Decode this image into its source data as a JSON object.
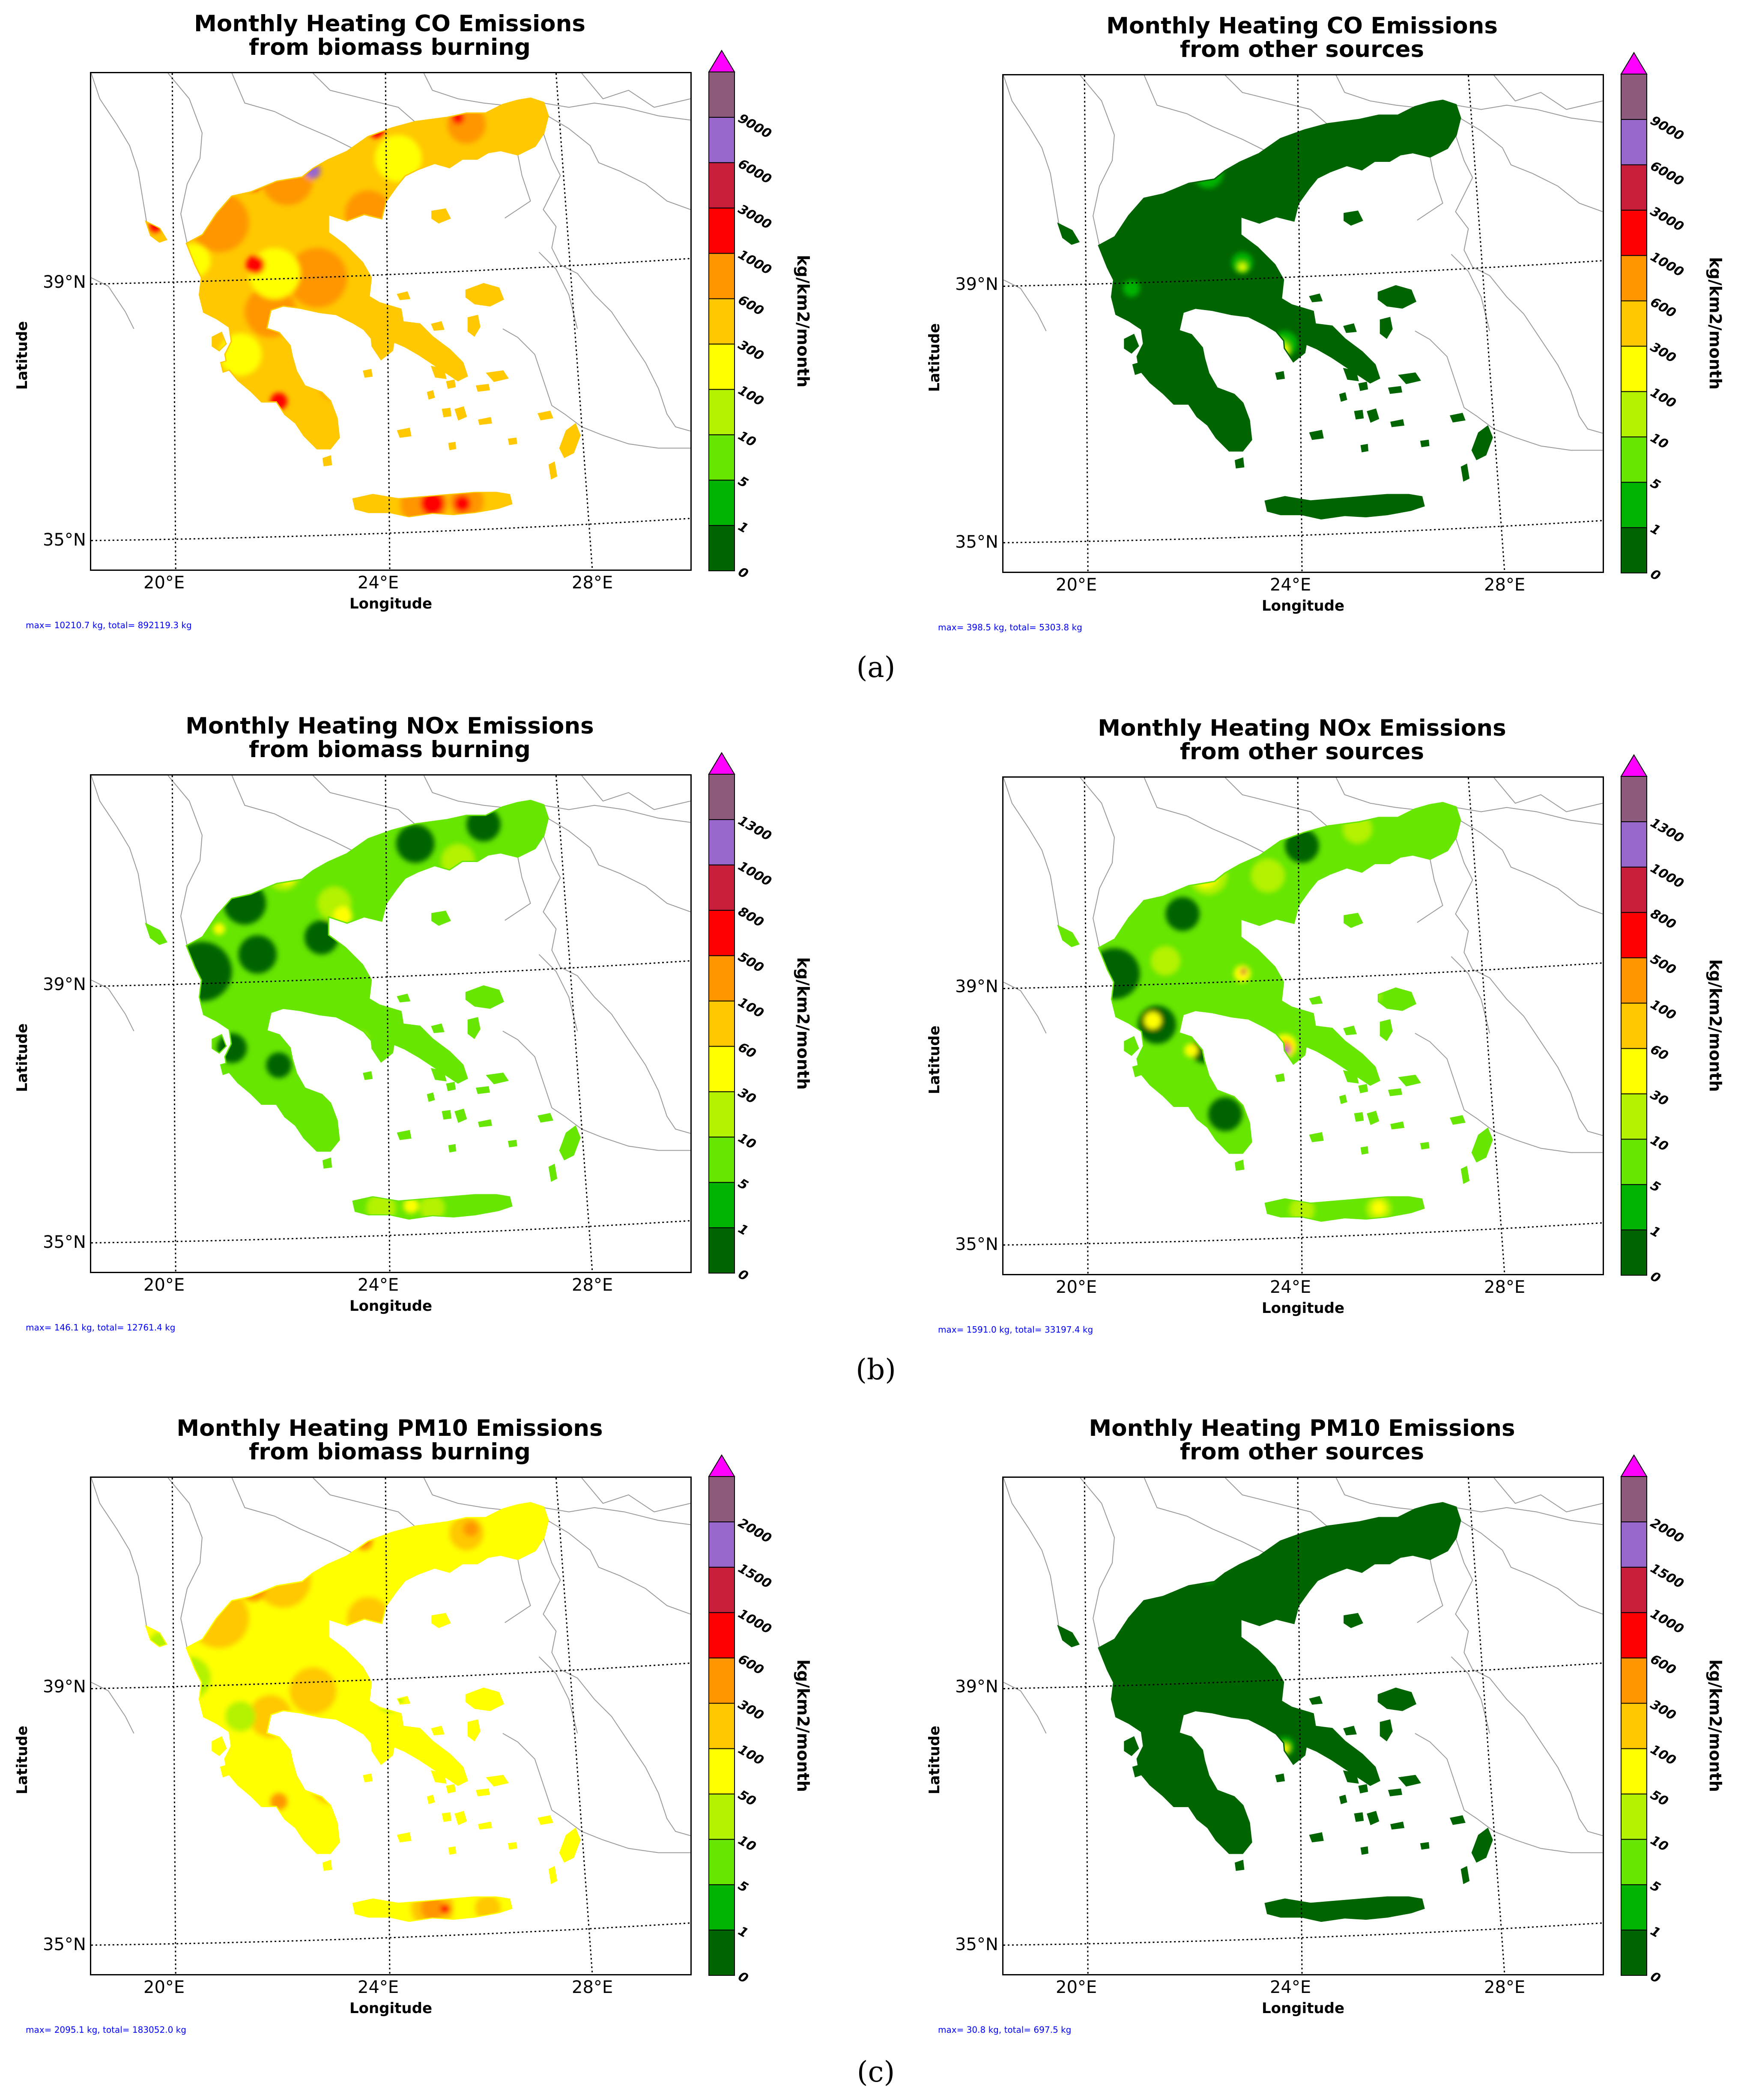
{
  "figure": {
    "row_labels": [
      "(a)",
      "(b)",
      "(c)"
    ],
    "axis_labels": {
      "latitude": "Latitude",
      "longitude": "Longitude"
    },
    "lon_ticks": [
      "20°E",
      "24°E",
      "28°E"
    ],
    "lat_ticks": [
      "39°N",
      "35°N"
    ],
    "colorbar_unit": "kg/km2/month",
    "colors": {
      "bins": [
        "#006400",
        "#00b300",
        "#66e600",
        "#b3f200",
        "#ffff00",
        "#ffc800",
        "#ff9600",
        "#ff0000",
        "#c81e3c",
        "#9966cc",
        "#8c5a7a"
      ],
      "extend": "#ff00ff",
      "border": "#999999",
      "stats_text": "#0000ff"
    },
    "colorbar_sets": {
      "co": [
        "0",
        "1",
        "5",
        "10",
        "100",
        "300",
        "600",
        "1000",
        "3000",
        "6000",
        "9000"
      ],
      "nox": [
        "0",
        "1",
        "5",
        "10",
        "30",
        "60",
        "100",
        "500",
        "800",
        "1000",
        "1300"
      ],
      "pm10": [
        "0",
        "1",
        "5",
        "10",
        "50",
        "100",
        "300",
        "600",
        "1000",
        "1500",
        "2000"
      ]
    },
    "panels": [
      {
        "title1": "Monthly Heating CO Emissions",
        "title2": "from biomass burning",
        "stats": "max= 10210.7 kg,  total= 892119.3 kg",
        "scale": "co",
        "map_style": "co-bio",
        "icon": "greece-emission-map-icon"
      },
      {
        "title1": "Monthly Heating CO Emissions",
        "title2": "from other sources",
        "stats": "max= 398.5 kg,  total= 5303.8 kg",
        "scale": "co",
        "map_style": "co-other",
        "icon": "greece-emission-map-icon"
      },
      {
        "title1": "Monthly Heating NOx Emissions",
        "title2": "from biomass burning",
        "stats": "max= 146.1 kg,  total= 12761.4 kg",
        "scale": "nox",
        "map_style": "nox-bio",
        "icon": "greece-emission-map-icon"
      },
      {
        "title1": "Monthly Heating NOx Emissions",
        "title2": "from other sources",
        "stats": "max= 1591.0 kg,  total= 33197.4 kg",
        "scale": "nox",
        "map_style": "nox-other",
        "icon": "greece-emission-map-icon"
      },
      {
        "title1": "Monthly Heating PM10 Emissions",
        "title2": "from biomass burning",
        "stats": "max= 2095.1 kg,  total= 183052.0 kg",
        "scale": "pm10",
        "map_style": "pm-bio",
        "icon": "greece-emission-map-icon"
      },
      {
        "title1": "Monthly Heating PM10 Emissions",
        "title2": "from other sources",
        "stats": "max= 30.8 kg,  total= 697.5 kg",
        "scale": "pm10",
        "map_style": "pm-other",
        "icon": "greece-emission-map-icon"
      }
    ]
  }
}
